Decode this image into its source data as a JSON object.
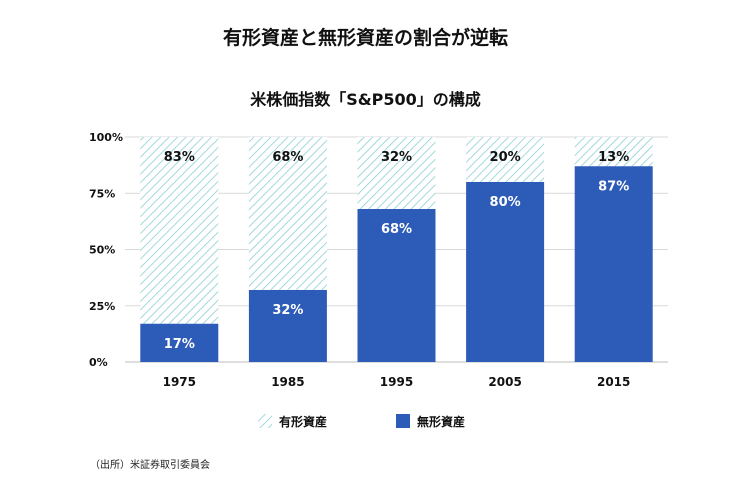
{
  "title": "有形資産と無形資産の割合が逆転",
  "subtitle": "米株価指数「S&P500」の構成",
  "source": "（出所）米証券取引委員会",
  "chart_data": {
    "type": "bar",
    "stacked": true,
    "percent_stacked": true,
    "categories": [
      "1975",
      "1985",
      "1995",
      "2005",
      "2015"
    ],
    "series": [
      {
        "name": "無形資産",
        "values": [
          17,
          32,
          68,
          80,
          87
        ],
        "labels": [
          "17%",
          "32%",
          "68%",
          "80%",
          "87%"
        ],
        "fill": "solid"
      },
      {
        "name": "有形資産",
        "values": [
          83,
          68,
          32,
          20,
          13
        ],
        "labels": [
          "83%",
          "68%",
          "32%",
          "20%",
          "13%"
        ],
        "fill": "hatched"
      }
    ],
    "yticks": [
      0,
      25,
      50,
      75,
      100
    ],
    "ytick_labels": [
      "0%",
      "25%",
      "50%",
      "75%",
      "100%"
    ],
    "ylim": [
      0,
      100
    ],
    "grid": true,
    "legend": {
      "position": "bottom",
      "order": [
        "有形資産",
        "無形資産"
      ]
    },
    "colors": {
      "solid": "#2d5bb8",
      "hatch": "#8ccfd1",
      "grid": "#d9d9d9",
      "axis": "#bdbdbd"
    }
  }
}
